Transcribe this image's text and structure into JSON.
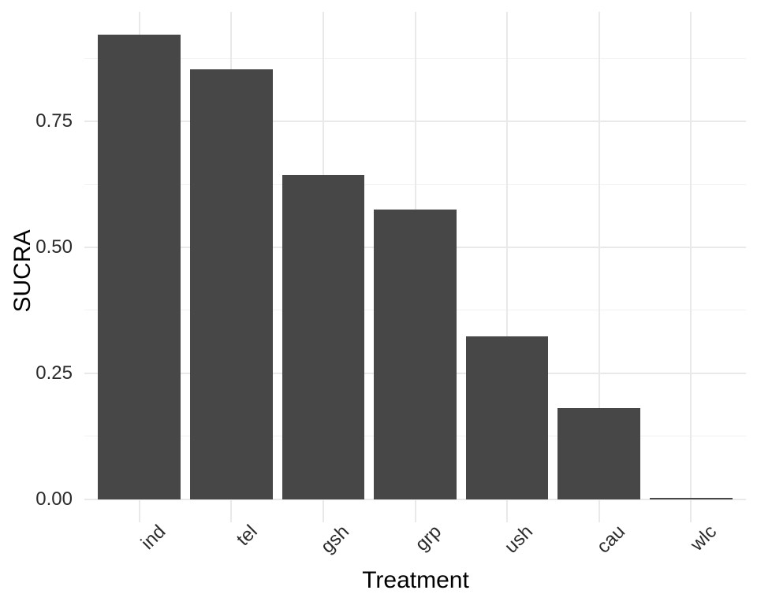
{
  "chart_data": {
    "type": "bar",
    "title": "",
    "xlabel": "Treatment",
    "ylabel": "SUCRA",
    "categories": [
      "ind",
      "tel",
      "gsh",
      "grp",
      "ush",
      "cau",
      "wlc"
    ],
    "values": [
      0.922,
      0.853,
      0.644,
      0.575,
      0.323,
      0.18,
      0.002
    ],
    "y_ticks": [
      0,
      0.25,
      0.5,
      0.75
    ],
    "y_tick_labels": [
      "0.00",
      "0.25",
      "0.50",
      "0.75"
    ],
    "y_minor_gridlines": [
      0.125,
      0.375,
      0.625,
      0.875
    ],
    "ylim": [
      0,
      0.97
    ],
    "x_tick_angle": 45,
    "grid": true,
    "legend": false,
    "colors": {
      "bar_fill": "#474747",
      "grid_major": "#e9e9e9",
      "grid_minor": "#f1f1f1",
      "tick_label": "#2b2b2b",
      "axis_title": "#000000",
      "background": "#ffffff"
    }
  }
}
